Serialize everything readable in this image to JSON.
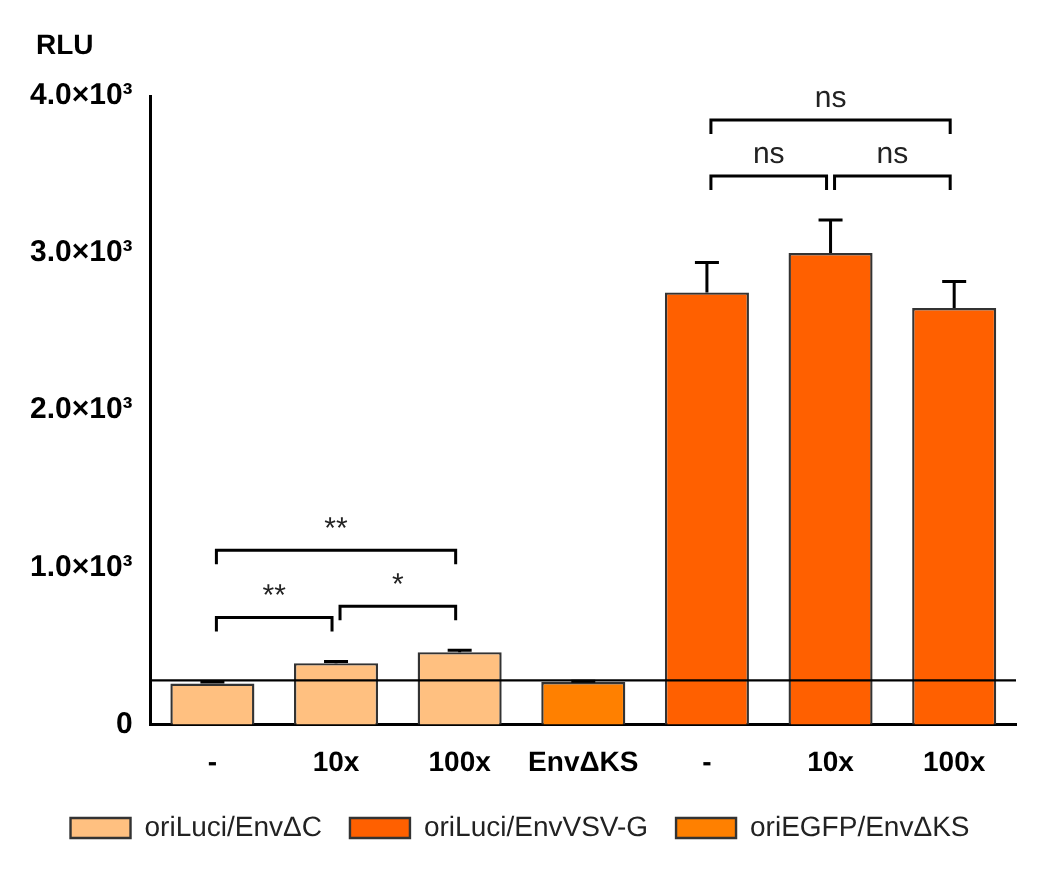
{
  "chart_data": {
    "type": "bar",
    "ylabel": "RLU",
    "categories": [
      "-",
      "10x",
      "100x",
      "EnvΔKS",
      "-",
      "10x",
      "100x"
    ],
    "series": [
      {
        "name": "oriLuci/EnvΔC",
        "color": "#ffc080",
        "values": [
          260,
          390,
          460,
          null,
          null,
          null,
          null
        ],
        "errors": [
          10,
          10,
          12,
          null,
          null,
          null,
          null
        ]
      },
      {
        "name": "oriLuci/EnvVSV-G",
        "color": "#ff6000",
        "values": [
          null,
          null,
          null,
          null,
          2750,
          3000,
          2650
        ],
        "errors": [
          null,
          null,
          null,
          null,
          190,
          210,
          170
        ]
      },
      {
        "name": "oriEGFP/EnvΔKS",
        "color": "#ff8000",
        "values": [
          null,
          null,
          null,
          270,
          null,
          null,
          null
        ],
        "errors": [
          null,
          null,
          null,
          5,
          null,
          null,
          null
        ]
      }
    ],
    "ylim": [
      0,
      4000
    ],
    "yticks": [
      0,
      {
        "value": 1000,
        "label": "1.0×10³"
      },
      {
        "value": 2000,
        "label": "2.0×10³"
      },
      {
        "value": 3000,
        "label": "3.0×10³"
      },
      {
        "value": 4000,
        "label": "4.0×10³"
      }
    ],
    "ref_lines": [
      {
        "axis": "y",
        "value": 280,
        "color": "#000000"
      }
    ],
    "annotations": [
      "**",
      "*",
      "**",
      "ns",
      "ns",
      "ns"
    ],
    "grid": false,
    "legend": "bottom"
  }
}
